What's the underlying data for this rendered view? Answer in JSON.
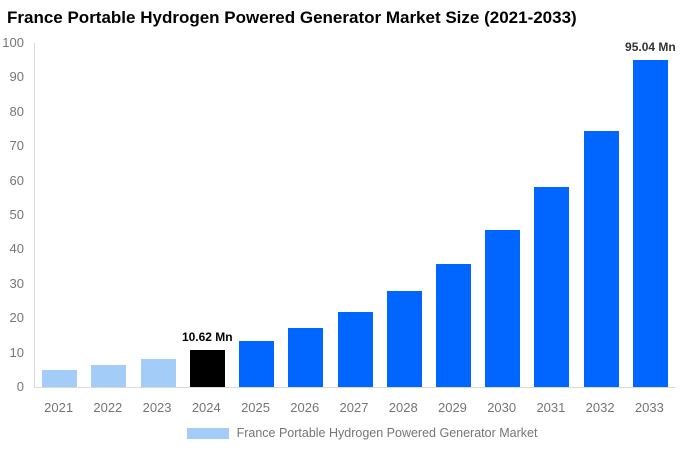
{
  "title": "France Portable Hydrogen Powered Generator Market Size (2021-2033)",
  "legend": {
    "label": "France Portable Hydrogen Powered Generator Market",
    "swatch_color": "#a4ccf8"
  },
  "colors": {
    "historical_bar": "#a4ccf8",
    "base_year_bar": "#000000",
    "forecast_bar": "#0066ff",
    "axis_line": "#d9d9d9",
    "tick_text": "#757575",
    "title_text": "#000000"
  },
  "chart_data": {
    "type": "bar",
    "title": "France Portable Hydrogen Powered Generator Market Size (2021-2033)",
    "xlabel": "",
    "ylabel": "",
    "units": "Mn",
    "ylim": [
      0,
      100
    ],
    "yticks": [
      0,
      10,
      20,
      30,
      40,
      50,
      60,
      70,
      80,
      90,
      100
    ],
    "grid": false,
    "legend_position": "bottom",
    "categories": [
      "2021",
      "2022",
      "2023",
      "2024",
      "2025",
      "2026",
      "2027",
      "2028",
      "2029",
      "2030",
      "2031",
      "2032",
      "2033"
    ],
    "values": [
      5.0,
      6.3,
      8.0,
      10.62,
      13.4,
      17.1,
      21.9,
      28.0,
      35.7,
      45.6,
      58.1,
      74.3,
      95.04
    ],
    "bar_colors": [
      "#a4ccf8",
      "#a4ccf8",
      "#a4ccf8",
      "#000000",
      "#0066ff",
      "#0066ff",
      "#0066ff",
      "#0066ff",
      "#0066ff",
      "#0066ff",
      "#0066ff",
      "#0066ff",
      "#0066ff"
    ],
    "annotations": [
      {
        "category": "2024",
        "text": "10.62 Mn",
        "color": "#000000"
      },
      {
        "category": "2033",
        "text": "95.04 Mn",
        "color": "#333333"
      }
    ]
  }
}
